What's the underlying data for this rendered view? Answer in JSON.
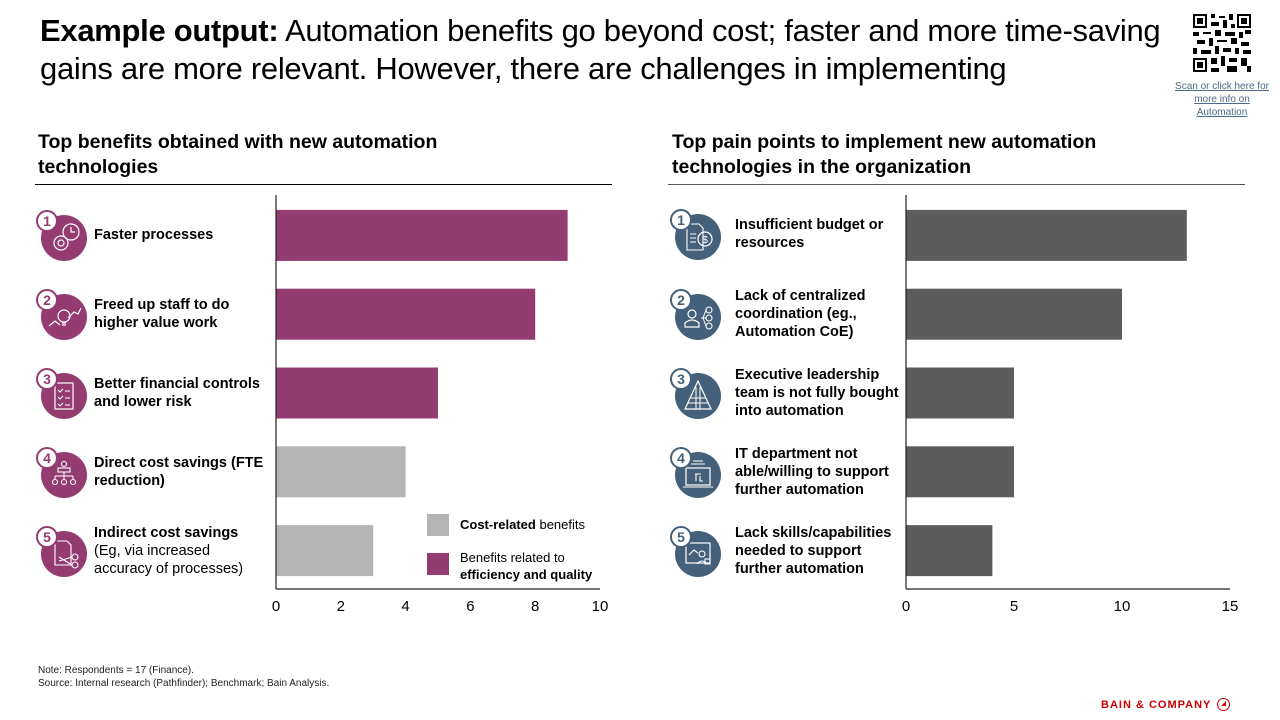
{
  "header": {
    "title_bold": "Example output:",
    "title_rest": " Automation benefits go beyond cost; faster and more time-saving gains are more relevant. However, there are challenges in implementing",
    "qr_link": "Scan or click here for more info on Automation"
  },
  "colors": {
    "efficiency": "#943b72",
    "cost": "#b4b4b4",
    "pain": "#5c5c5c",
    "pain_icon": "#44607a",
    "brand": "#cc0000"
  },
  "benefits": {
    "title": "Top benefits obtained with new automation technologies",
    "items": [
      {
        "num": "1",
        "label": "Faster processes",
        "sub": "",
        "icon": "gear-clock-icon"
      },
      {
        "num": "2",
        "label": "Freed up staff to do higher value work",
        "sub": "",
        "icon": "lightbulb-growth-icon"
      },
      {
        "num": "3",
        "label": "Better financial controls and lower risk",
        "sub": "",
        "icon": "checklist-icon"
      },
      {
        "num": "4",
        "label": "Direct cost savings (FTE reduction)",
        "sub": "",
        "icon": "org-chart-icon"
      },
      {
        "num": "5",
        "label": "Indirect cost savings",
        "sub": "(Eg, via increased accuracy of processes)",
        "icon": "scissors-document-icon"
      }
    ],
    "legend": [
      {
        "bold": "Cost-related",
        "text": " benefits",
        "color_key": "cost"
      },
      {
        "text": "Benefits related to",
        "bold": "efficiency and quality",
        "color_key": "efficiency"
      }
    ]
  },
  "pain_points": {
    "title": "Top pain points to implement new automation technologies in the organization",
    "items": [
      {
        "num": "1",
        "label": "Insufficient budget or resources",
        "icon": "budget-document-icon"
      },
      {
        "num": "2",
        "label": "Lack of centralized coordination (eg., Automation CoE)",
        "icon": "network-person-icon"
      },
      {
        "num": "3",
        "label": "Executive leadership team is not fully bought into automation",
        "icon": "pyramid-icon"
      },
      {
        "num": "4",
        "label": "IT department not able/willing to support further automation",
        "icon": "computer-screen-icon"
      },
      {
        "num": "5",
        "label": "Lack skills/capabilities needed to support further automation",
        "icon": "presentation-icon"
      }
    ]
  },
  "chart_data": [
    {
      "type": "bar",
      "orientation": "horizontal",
      "title": "Top benefits obtained with new automation technologies",
      "categories": [
        "Faster processes",
        "Freed up staff to do higher value work",
        "Better financial controls and lower risk",
        "Direct cost savings (FTE reduction)",
        "Indirect cost savings"
      ],
      "values": [
        9,
        8,
        5,
        4,
        3
      ],
      "value_groups": [
        "efficiency",
        "efficiency",
        "efficiency",
        "cost",
        "cost"
      ],
      "xlim": [
        0,
        10
      ],
      "xticks": [
        "0",
        "2",
        "4",
        "6",
        "8",
        "10"
      ],
      "xlabel": "",
      "ylabel": "",
      "grid": false,
      "legend_position": "bottom-right"
    },
    {
      "type": "bar",
      "orientation": "horizontal",
      "title": "Top pain points to implement new automation technologies in the organization",
      "categories": [
        "Insufficient budget or resources",
        "Lack of centralized coordination (eg., Automation CoE)",
        "Executive leadership team is not fully bought into automation",
        "IT department not able/willing to support further automation",
        "Lack skills/capabilities needed to support further automation"
      ],
      "values": [
        13,
        10,
        5,
        5,
        4
      ],
      "xlim": [
        0,
        15
      ],
      "xticks": [
        "0",
        "5",
        "10",
        "15"
      ],
      "xlabel": "",
      "ylabel": "",
      "grid": false
    }
  ],
  "footer": {
    "note": "Note: Respondents = 17 (Finance).",
    "source": "Source: Internal research (Pathfinder); Benchmark; Bain Analysis.",
    "brand": "BAIN & COMPANY"
  }
}
